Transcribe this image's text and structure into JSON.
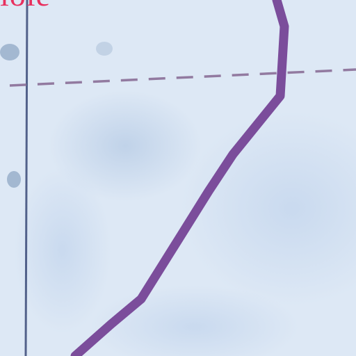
{
  "fragment": {
    "text": "iole"
  },
  "colors": {
    "paper": "#d9e6f4",
    "text": "#e8305e",
    "curve": "#7b4d9b",
    "axis_line": "#3a4a78",
    "dashed_line": "#8a6f97",
    "smudge": "#5d7fa7"
  }
}
